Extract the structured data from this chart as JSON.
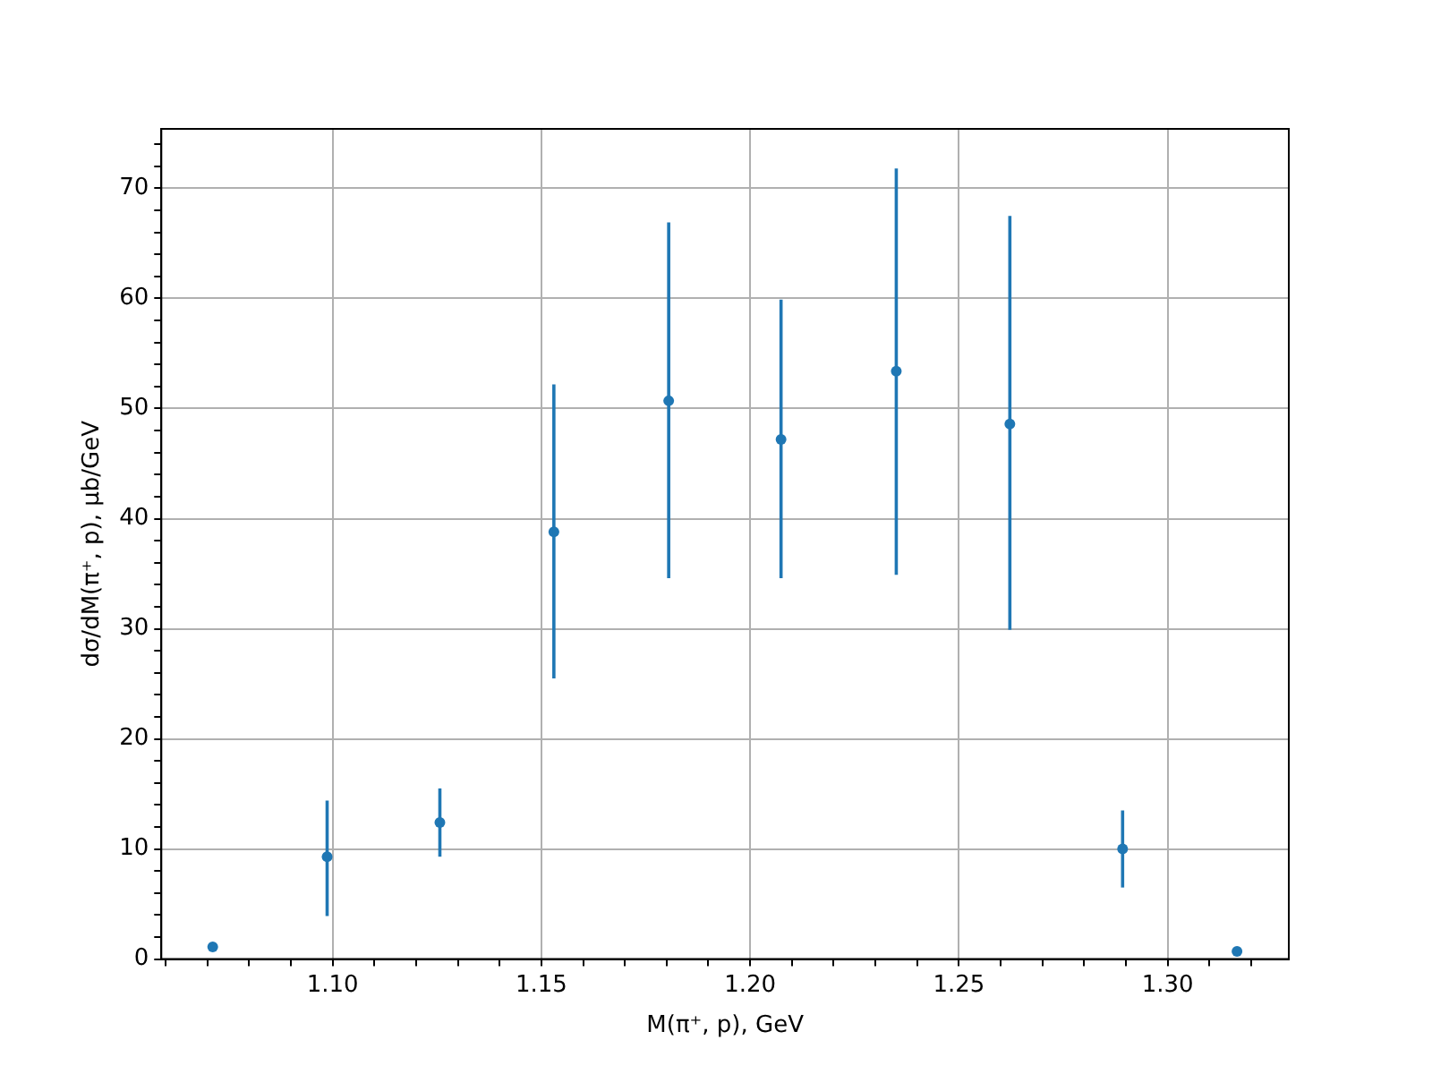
{
  "chart_data": {
    "type": "scatter",
    "xlabel": "M(π⁺, p), GeV",
    "ylabel": "dσ/dM(π⁺, p), μb/GeV",
    "x": [
      1.0713,
      1.0987,
      1.1257,
      1.153,
      1.1805,
      1.2074,
      1.235,
      1.2622,
      1.2892,
      1.3166
    ],
    "series": [
      {
        "color": "#1f77b4",
        "values": [
          1.1,
          9.3,
          12.4,
          38.8,
          50.7,
          47.2,
          53.4,
          48.6,
          10.0,
          0.7
        ],
        "errors": [
          null,
          [
            3.9,
            14.4
          ],
          [
            9.3,
            15.5
          ],
          [
            25.5,
            52.2
          ],
          [
            34.6,
            66.9
          ],
          [
            34.6,
            59.9
          ],
          [
            34.9,
            71.8
          ],
          [
            29.9,
            67.5
          ],
          [
            6.5,
            13.5
          ],
          null
        ]
      }
    ],
    "xlim": [
      1.059,
      1.329
    ],
    "ylim": [
      0,
      75.4
    ],
    "xticks": [
      {
        "value": 1.06,
        "label": null
      },
      {
        "value": 1.07,
        "label": null
      },
      {
        "value": 1.08,
        "label": null
      },
      {
        "value": 1.09,
        "label": null
      },
      {
        "value": 1.1,
        "label": "1.10"
      },
      {
        "value": 1.11,
        "label": null
      },
      {
        "value": 1.12,
        "label": null
      },
      {
        "value": 1.13,
        "label": null
      },
      {
        "value": 1.14,
        "label": null
      },
      {
        "value": 1.15,
        "label": "1.15"
      },
      {
        "value": 1.16,
        "label": null
      },
      {
        "value": 1.17,
        "label": null
      },
      {
        "value": 1.18,
        "label": null
      },
      {
        "value": 1.19,
        "label": null
      },
      {
        "value": 1.2,
        "label": "1.20"
      },
      {
        "value": 1.21,
        "label": null
      },
      {
        "value": 1.22,
        "label": null
      },
      {
        "value": 1.23,
        "label": null
      },
      {
        "value": 1.24,
        "label": null
      },
      {
        "value": 1.25,
        "label": "1.25"
      },
      {
        "value": 1.26,
        "label": null
      },
      {
        "value": 1.27,
        "label": null
      },
      {
        "value": 1.28,
        "label": null
      },
      {
        "value": 1.29,
        "label": null
      },
      {
        "value": 1.3,
        "label": "1.30"
      },
      {
        "value": 1.31,
        "label": null
      },
      {
        "value": 1.32,
        "label": null
      }
    ],
    "yticks": [
      0,
      {
        "value": 2,
        "label": null
      },
      {
        "value": 4,
        "label": null
      },
      {
        "value": 6,
        "label": null
      },
      {
        "value": 8,
        "label": null
      },
      10,
      {
        "value": 12,
        "label": null
      },
      {
        "value": 14,
        "label": null
      },
      {
        "value": 16,
        "label": null
      },
      {
        "value": 18,
        "label": null
      },
      20,
      {
        "value": 22,
        "label": null
      },
      {
        "value": 24,
        "label": null
      },
      {
        "value": 26,
        "label": null
      },
      {
        "value": 28,
        "label": null
      },
      30,
      {
        "value": 32,
        "label": null
      },
      {
        "value": 34,
        "label": null
      },
      {
        "value": 36,
        "label": null
      },
      {
        "value": 38,
        "label": null
      },
      40,
      {
        "value": 42,
        "label": null
      },
      {
        "value": 44,
        "label": null
      },
      {
        "value": 46,
        "label": null
      },
      {
        "value": 48,
        "label": null
      },
      50,
      {
        "value": 52,
        "label": null
      },
      {
        "value": 54,
        "label": null
      },
      {
        "value": 56,
        "label": null
      },
      {
        "value": 58,
        "label": null
      },
      60,
      {
        "value": 62,
        "label": null
      },
      {
        "value": 64,
        "label": null
      },
      {
        "value": 66,
        "label": null
      },
      {
        "value": 68,
        "label": null
      },
      70,
      {
        "value": 72,
        "label": null
      },
      {
        "value": 74,
        "label": null
      }
    ],
    "grid": true,
    "marker": "circle"
  }
}
